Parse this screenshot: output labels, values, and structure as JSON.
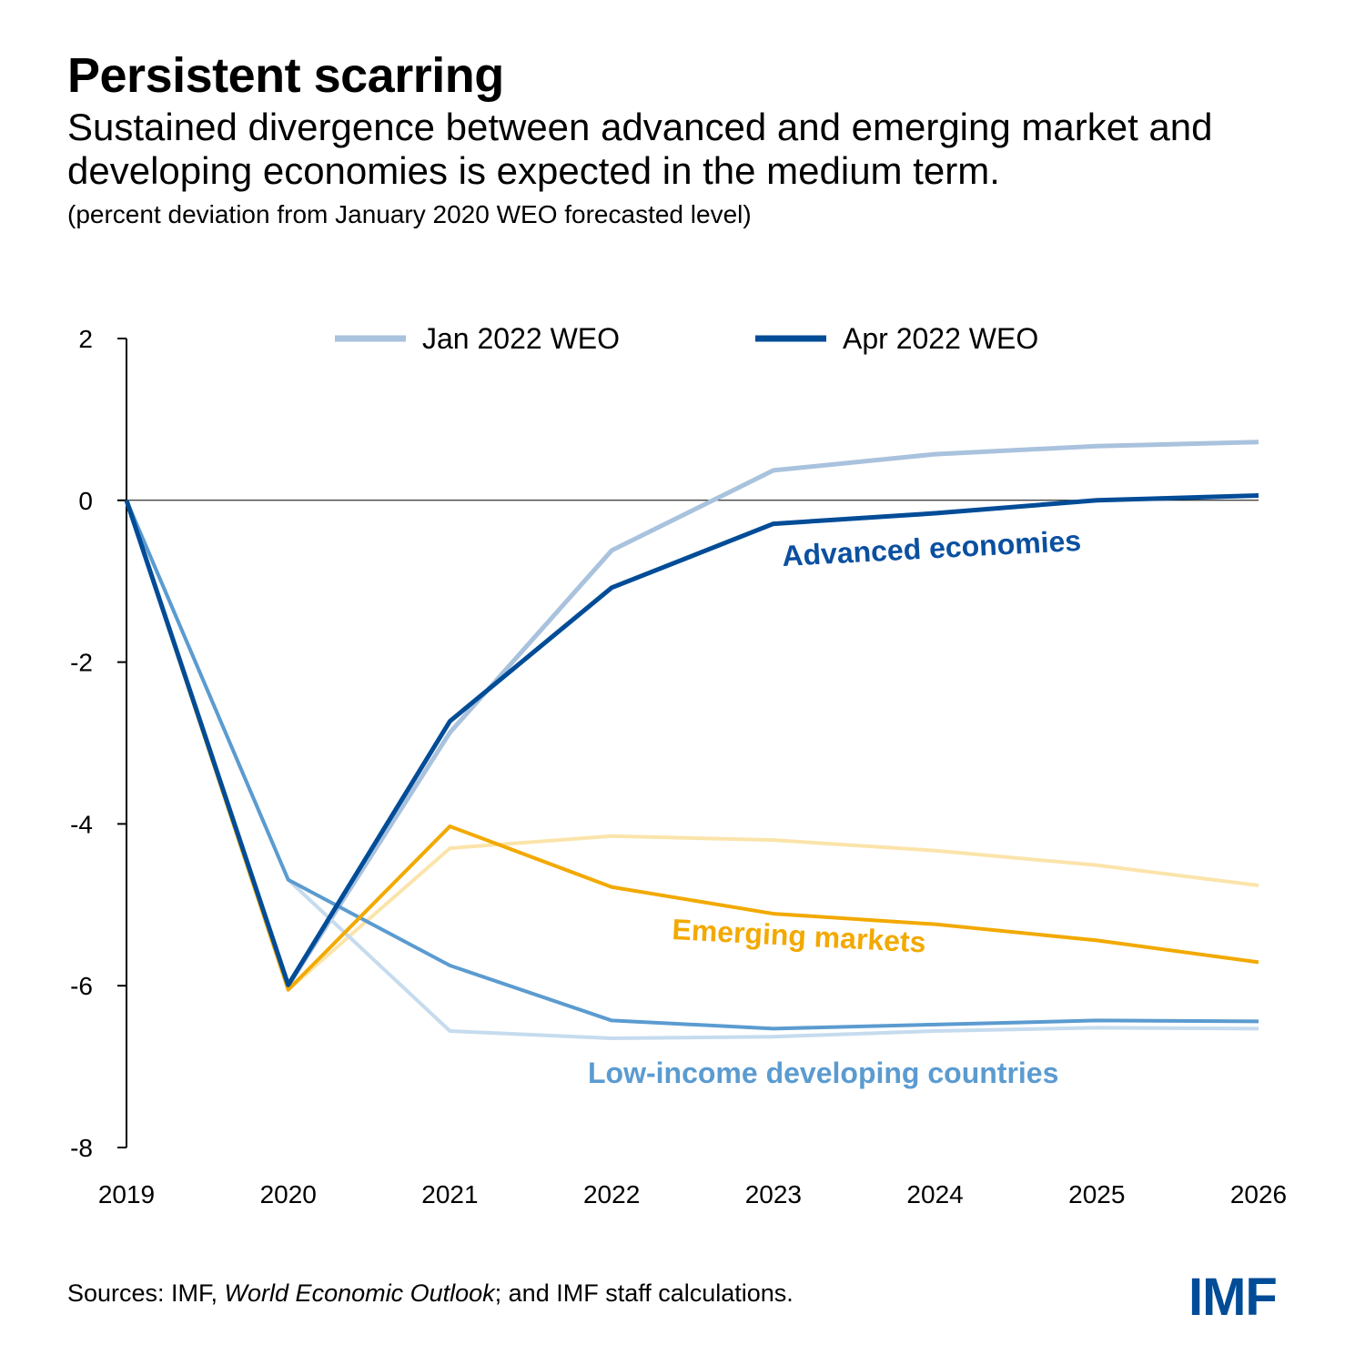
{
  "header": {
    "title": "Persistent scarring",
    "subtitle": "Sustained divergence between advanced and emerging market and developing economies is expected in the medium term.",
    "unit": "(percent deviation from January 2020 WEO forecasted level)"
  },
  "footer": {
    "source_prefix": "Sources: IMF, ",
    "source_italic": "World Economic Outlook",
    "source_suffix": "; and IMF staff calculations.",
    "logo": "IMF"
  },
  "colors": {
    "adv_apr": "#004C97",
    "adv_jan": "#A9C2DD",
    "em_apr": "#F2A900",
    "em_jan": "#FBE4AA",
    "lidc_apr": "#5B9BD0",
    "lidc_jan": "#C6DBEE"
  },
  "chart_data": {
    "type": "line",
    "title": "Persistent scarring",
    "x": [
      "2019",
      "2020",
      "2021",
      "2022",
      "2023",
      "2024",
      "2025",
      "2026"
    ],
    "ylim": [
      -8,
      2
    ],
    "yticks": [
      "2",
      "0",
      "-2",
      "-4",
      "-6",
      "-8"
    ],
    "yticks_values": [
      2,
      0,
      -2,
      -4,
      -6,
      -8
    ],
    "legend": [
      {
        "label": "Jan 2022 WEO",
        "color": "#A9C2DD"
      },
      {
        "label": "Apr 2022 WEO",
        "color": "#004C97"
      }
    ],
    "legend_position": "top",
    "annotations": [
      {
        "text": "Advanced economies",
        "color": "#0B50A0"
      },
      {
        "text": "Emerging markets",
        "color": "#F2A900"
      },
      {
        "text": "Low-income developing countries",
        "color": "#5B9BD0"
      }
    ],
    "series": [
      {
        "name": "Advanced economies - Jan 2022 WEO",
        "color": "#A9C2DD",
        "width": 5,
        "values": [
          0,
          -6.0,
          -2.87,
          -0.62,
          0.37,
          0.57,
          0.67,
          0.72
        ]
      },
      {
        "name": "Emerging markets - Jan 2022 WEO",
        "color": "#FBE4AA",
        "width": 4,
        "values": [
          0,
          -6.05,
          -4.3,
          -4.15,
          -4.2,
          -4.33,
          -4.51,
          -4.76
        ]
      },
      {
        "name": "Low-income developing countries - Jan 2022 WEO",
        "color": "#C6DBEE",
        "width": 4,
        "values": [
          0,
          -4.69,
          -6.56,
          -6.65,
          -6.63,
          -6.56,
          -6.52,
          -6.53
        ]
      },
      {
        "name": "Low-income developing countries - Apr 2022 WEO",
        "color": "#5B9BD0",
        "width": 4,
        "values": [
          0,
          -4.69,
          -5.75,
          -6.43,
          -6.53,
          -6.48,
          -6.43,
          -6.44
        ]
      },
      {
        "name": "Emerging markets - Apr 2022 WEO",
        "color": "#F2A900",
        "width": 4,
        "values": [
          0,
          -6.05,
          -4.03,
          -4.78,
          -5.11,
          -5.24,
          -5.44,
          -5.71
        ]
      },
      {
        "name": "Advanced economies - Apr 2022 WEO",
        "color": "#004C97",
        "width": 5,
        "values": [
          0,
          -5.99,
          -2.73,
          -1.08,
          -0.29,
          -0.16,
          0.0,
          0.06
        ]
      }
    ]
  }
}
